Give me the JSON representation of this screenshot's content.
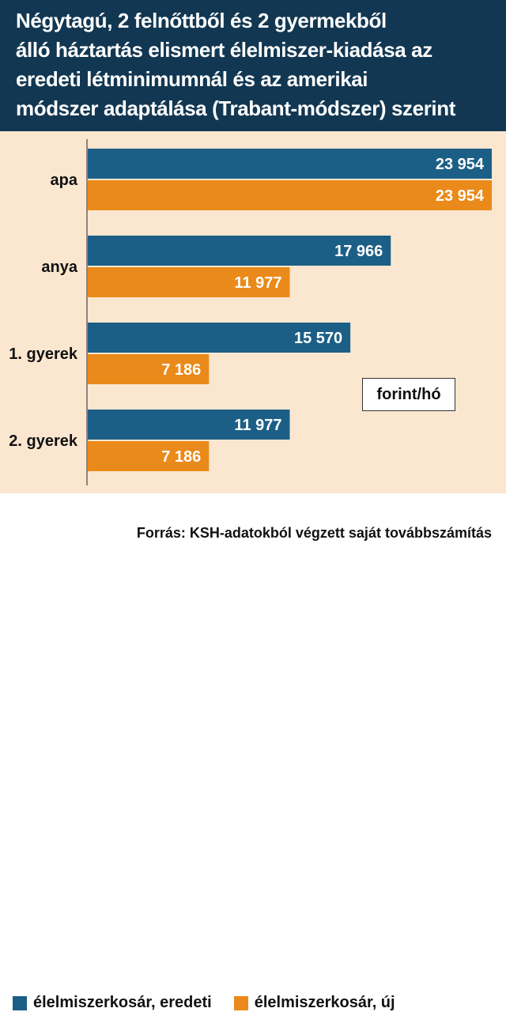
{
  "title": "Négytagú, 2 felnőttből és 2 gyermekből\nálló háztartás elismert élelmiszer-kiadása az\neredeti létminimumnál és az amerikai\nmódszer adaptálása (Trabant-módszer) szerint",
  "unit_label": "forint/hó",
  "source": "Forrás: KSH-adatokból végzett saját továbbszámítás",
  "colors": {
    "header": "#123752",
    "series_original": "#1c5f86",
    "series_new": "#ea8a1a",
    "plot_bg": "#fbe7d0"
  },
  "chart_data": {
    "type": "bar",
    "orientation": "horizontal",
    "categories": [
      "apa",
      "anya",
      "1. gyerek",
      "2. gyerek"
    ],
    "series": [
      {
        "name": "élelmiszerkosár, eredeti",
        "values": [
          23954,
          17966,
          15570,
          11977
        ],
        "labels": [
          "23 954",
          "17 966",
          "15 570",
          "11 977"
        ]
      },
      {
        "name": "élelmiszerkosár, új",
        "values": [
          23954,
          11977,
          7186,
          7186
        ],
        "labels": [
          "23 954",
          "11 977",
          "7 186",
          "7 186"
        ]
      }
    ],
    "xlim": [
      0,
      23954
    ],
    "grid": false,
    "legend": "bottom"
  }
}
